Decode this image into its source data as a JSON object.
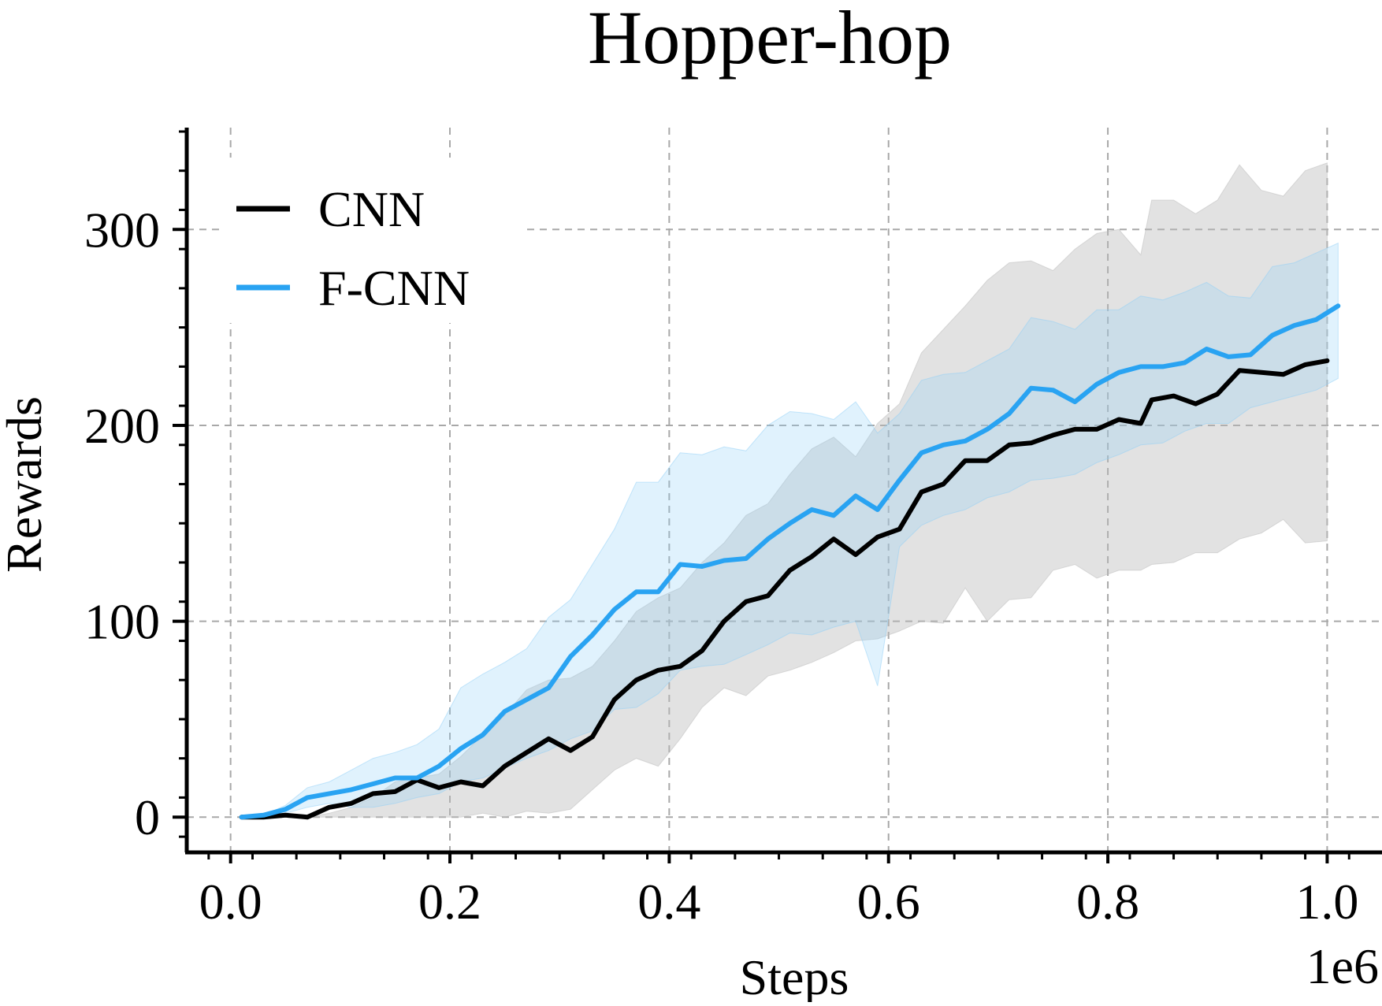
{
  "chart_data": {
    "type": "line",
    "title": "Hopper-hop",
    "xlabel": "Steps",
    "ylabel": "Rewards",
    "x_offset_label": "1e6",
    "xlim": [
      -0.04,
      1.05
    ],
    "ylim": [
      -18,
      352
    ],
    "xticks": [
      0.0,
      0.2,
      0.4,
      0.6,
      0.8,
      1.0
    ],
    "xtick_labels": [
      "0.0",
      "0.2",
      "0.4",
      "0.6",
      "0.8",
      "1.0"
    ],
    "yticks": [
      0,
      100,
      200,
      300
    ],
    "ytick_labels": [
      "0",
      "100",
      "200",
      "300"
    ],
    "grid": true,
    "legend_position": "top-left",
    "series": [
      {
        "name": "CNN",
        "color": "#000000",
        "band_color": "#bbbbbb",
        "x": [
          0.01,
          0.03,
          0.05,
          0.07,
          0.09,
          0.11,
          0.13,
          0.15,
          0.17,
          0.19,
          0.21,
          0.23,
          0.25,
          0.27,
          0.29,
          0.31,
          0.33,
          0.35,
          0.37,
          0.39,
          0.41,
          0.43,
          0.45,
          0.47,
          0.49,
          0.51,
          0.53,
          0.55,
          0.57,
          0.59,
          0.61,
          0.63,
          0.65,
          0.67,
          0.69,
          0.71,
          0.73,
          0.75,
          0.77,
          0.79,
          0.81,
          0.83,
          0.84,
          0.86,
          0.88,
          0.9,
          0.92,
          0.94,
          0.96,
          0.98,
          1.0
        ],
        "y": [
          0,
          0,
          1,
          0,
          5,
          7,
          12,
          13,
          19,
          15,
          18,
          16,
          26,
          33,
          40,
          34,
          41,
          60,
          70,
          75,
          77,
          85,
          100,
          110,
          113,
          126,
          133,
          142,
          134,
          143,
          147,
          166,
          170,
          182,
          182,
          190,
          191,
          195,
          198,
          198,
          203,
          201,
          213,
          215,
          211,
          216,
          228,
          227,
          226,
          231,
          233
        ],
        "upper": [
          0,
          0,
          1,
          0,
          2,
          5,
          10,
          18,
          20,
          22,
          31,
          42,
          52,
          65,
          70,
          71,
          77,
          90,
          105,
          112,
          117,
          130,
          140,
          154,
          160,
          175,
          188,
          194,
          184,
          201,
          211,
          237,
          249,
          261,
          274,
          283,
          284,
          279,
          290,
          298,
          300,
          287,
          315,
          315,
          308,
          315,
          333,
          320,
          317,
          330,
          334
        ],
        "lower": [
          0,
          0,
          0,
          0,
          0,
          0,
          0,
          0,
          0,
          0,
          0,
          2,
          0,
          3,
          2,
          4,
          14,
          24,
          30,
          26,
          40,
          56,
          66,
          62,
          72,
          75,
          79,
          84,
          90,
          91,
          95,
          100,
          99,
          117,
          100,
          111,
          112,
          126,
          129,
          122,
          126,
          126,
          129,
          130,
          135,
          135,
          142,
          145,
          152,
          140,
          141
        ]
      },
      {
        "name": "F-CNN",
        "color": "#29a3f2",
        "band_color": "#8fd0f7",
        "x": [
          0.01,
          0.03,
          0.05,
          0.07,
          0.09,
          0.11,
          0.13,
          0.15,
          0.17,
          0.19,
          0.21,
          0.23,
          0.25,
          0.27,
          0.29,
          0.31,
          0.33,
          0.35,
          0.37,
          0.39,
          0.41,
          0.43,
          0.45,
          0.47,
          0.49,
          0.51,
          0.53,
          0.55,
          0.57,
          0.59,
          0.61,
          0.63,
          0.65,
          0.67,
          0.69,
          0.71,
          0.73,
          0.75,
          0.77,
          0.79,
          0.81,
          0.83,
          0.85,
          0.87,
          0.89,
          0.91,
          0.93,
          0.95,
          0.97,
          0.99,
          1.01
        ],
        "y": [
          0,
          1,
          4,
          10,
          12,
          14,
          17,
          20,
          20,
          26,
          35,
          42,
          54,
          60,
          66,
          82,
          93,
          106,
          115,
          115,
          129,
          128,
          131,
          132,
          142,
          150,
          157,
          154,
          164,
          157,
          172,
          186,
          190,
          192,
          198,
          206,
          219,
          218,
          212,
          221,
          227,
          230,
          230,
          232,
          239,
          235,
          236,
          246,
          251,
          254,
          261
        ],
        "upper": [
          0,
          1,
          6,
          15,
          18,
          24,
          30,
          33,
          37,
          45,
          66,
          73,
          79,
          86,
          102,
          111,
          129,
          147,
          171,
          171,
          186,
          185,
          189,
          187,
          200,
          207,
          206,
          203,
          212,
          196,
          206,
          223,
          226,
          227,
          233,
          239,
          255,
          253,
          249,
          259,
          259,
          266,
          264,
          268,
          273,
          266,
          265,
          281,
          283,
          288,
          293
        ],
        "lower": [
          0,
          0,
          2,
          5,
          7,
          5,
          5,
          7,
          10,
          12,
          18,
          20,
          25,
          30,
          34,
          40,
          44,
          55,
          56,
          63,
          75,
          77,
          78,
          83,
          88,
          94,
          93,
          97,
          100,
          67,
          138,
          149,
          154,
          157,
          163,
          166,
          172,
          173,
          175,
          181,
          185,
          190,
          191,
          197,
          201,
          201,
          209,
          212,
          215,
          218,
          224
        ]
      }
    ]
  }
}
